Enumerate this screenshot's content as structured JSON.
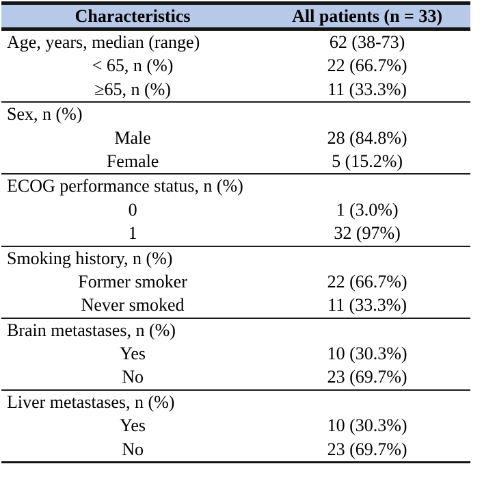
{
  "table": {
    "columns": [
      {
        "label": "Characteristics"
      },
      {
        "label": "All patients (n = 33)"
      }
    ],
    "sections": [
      {
        "rows": [
          {
            "label": "Age, years, median (range)",
            "value": "62 (38-73)",
            "indent": false
          },
          {
            "label": "< 65, n (%)",
            "value": "22 (66.7%)",
            "indent": true
          },
          {
            "label": "≥65, n (%)",
            "value": "11 (33.3%)",
            "indent": true
          }
        ]
      },
      {
        "rows": [
          {
            "label": "Sex, n (%)",
            "value": "",
            "indent": false
          },
          {
            "label": "Male",
            "value": "28 (84.8%)",
            "indent": true
          },
          {
            "label": "Female",
            "value": "5 (15.2%)",
            "indent": true
          }
        ]
      },
      {
        "rows": [
          {
            "label": "ECOG performance status, n (%)",
            "value": "",
            "indent": false
          },
          {
            "label": "0",
            "value": "1 (3.0%)",
            "indent": true
          },
          {
            "label": "1",
            "value": "32 (97%)",
            "indent": true
          }
        ]
      },
      {
        "rows": [
          {
            "label": "Smoking history, n (%)",
            "value": "",
            "indent": false
          },
          {
            "label": "Former smoker",
            "value": "22 (66.7%)",
            "indent": true
          },
          {
            "label": "Never smoked",
            "value": "11 (33.3%)",
            "indent": true
          }
        ]
      },
      {
        "rows": [
          {
            "label": "Brain metastases, n (%)",
            "value": "",
            "indent": false
          },
          {
            "label": "Yes",
            "value": "10 (30.3%)",
            "indent": true
          },
          {
            "label": "No",
            "value": "23 (69.7%)",
            "indent": true
          }
        ]
      },
      {
        "rows": [
          {
            "label": "Liver metastases, n (%)",
            "value": "",
            "indent": false
          },
          {
            "label": "Yes",
            "value": "10 (30.3%)",
            "indent": true
          },
          {
            "label": "No",
            "value": "23 (69.7%)",
            "indent": true
          }
        ]
      }
    ]
  },
  "colors": {
    "header_bg": "#b7c9e8",
    "border": "#141414",
    "text": "#000000",
    "page_bg": "#ffffff"
  }
}
